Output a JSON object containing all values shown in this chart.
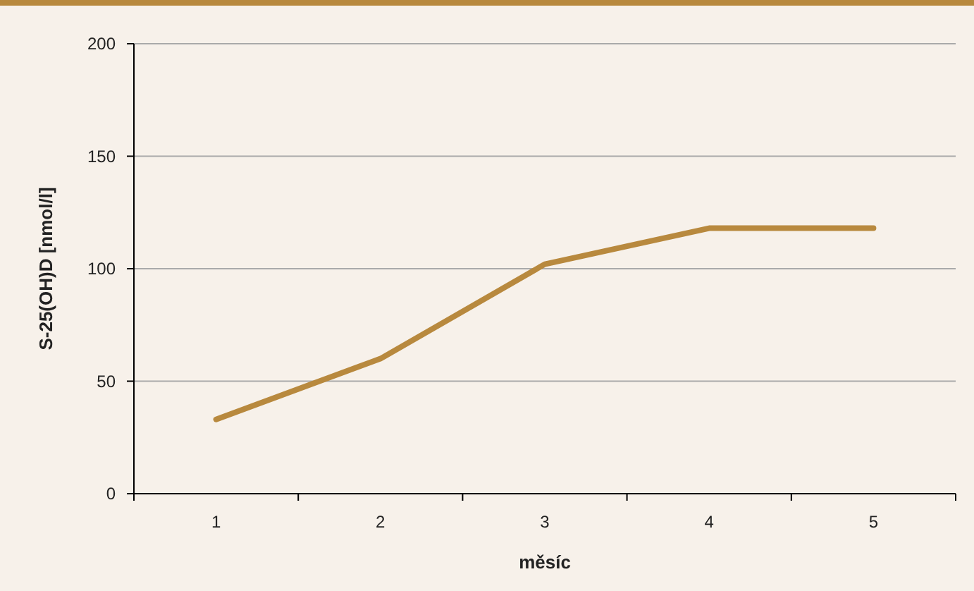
{
  "chart_data": {
    "type": "line",
    "xlabel": "měsíc",
    "ylabel": "S-25(OH)D [nmol/l]",
    "categories": [
      "1",
      "2",
      "3",
      "4",
      "5"
    ],
    "series": [
      {
        "color": "#b8893e",
        "values": [
          33,
          60,
          102,
          118,
          118
        ]
      }
    ],
    "ylim": [
      0,
      200
    ],
    "yticks": [
      0,
      50,
      100,
      150,
      200
    ],
    "grid": "y",
    "marker": "none",
    "line_style": "solid"
  }
}
